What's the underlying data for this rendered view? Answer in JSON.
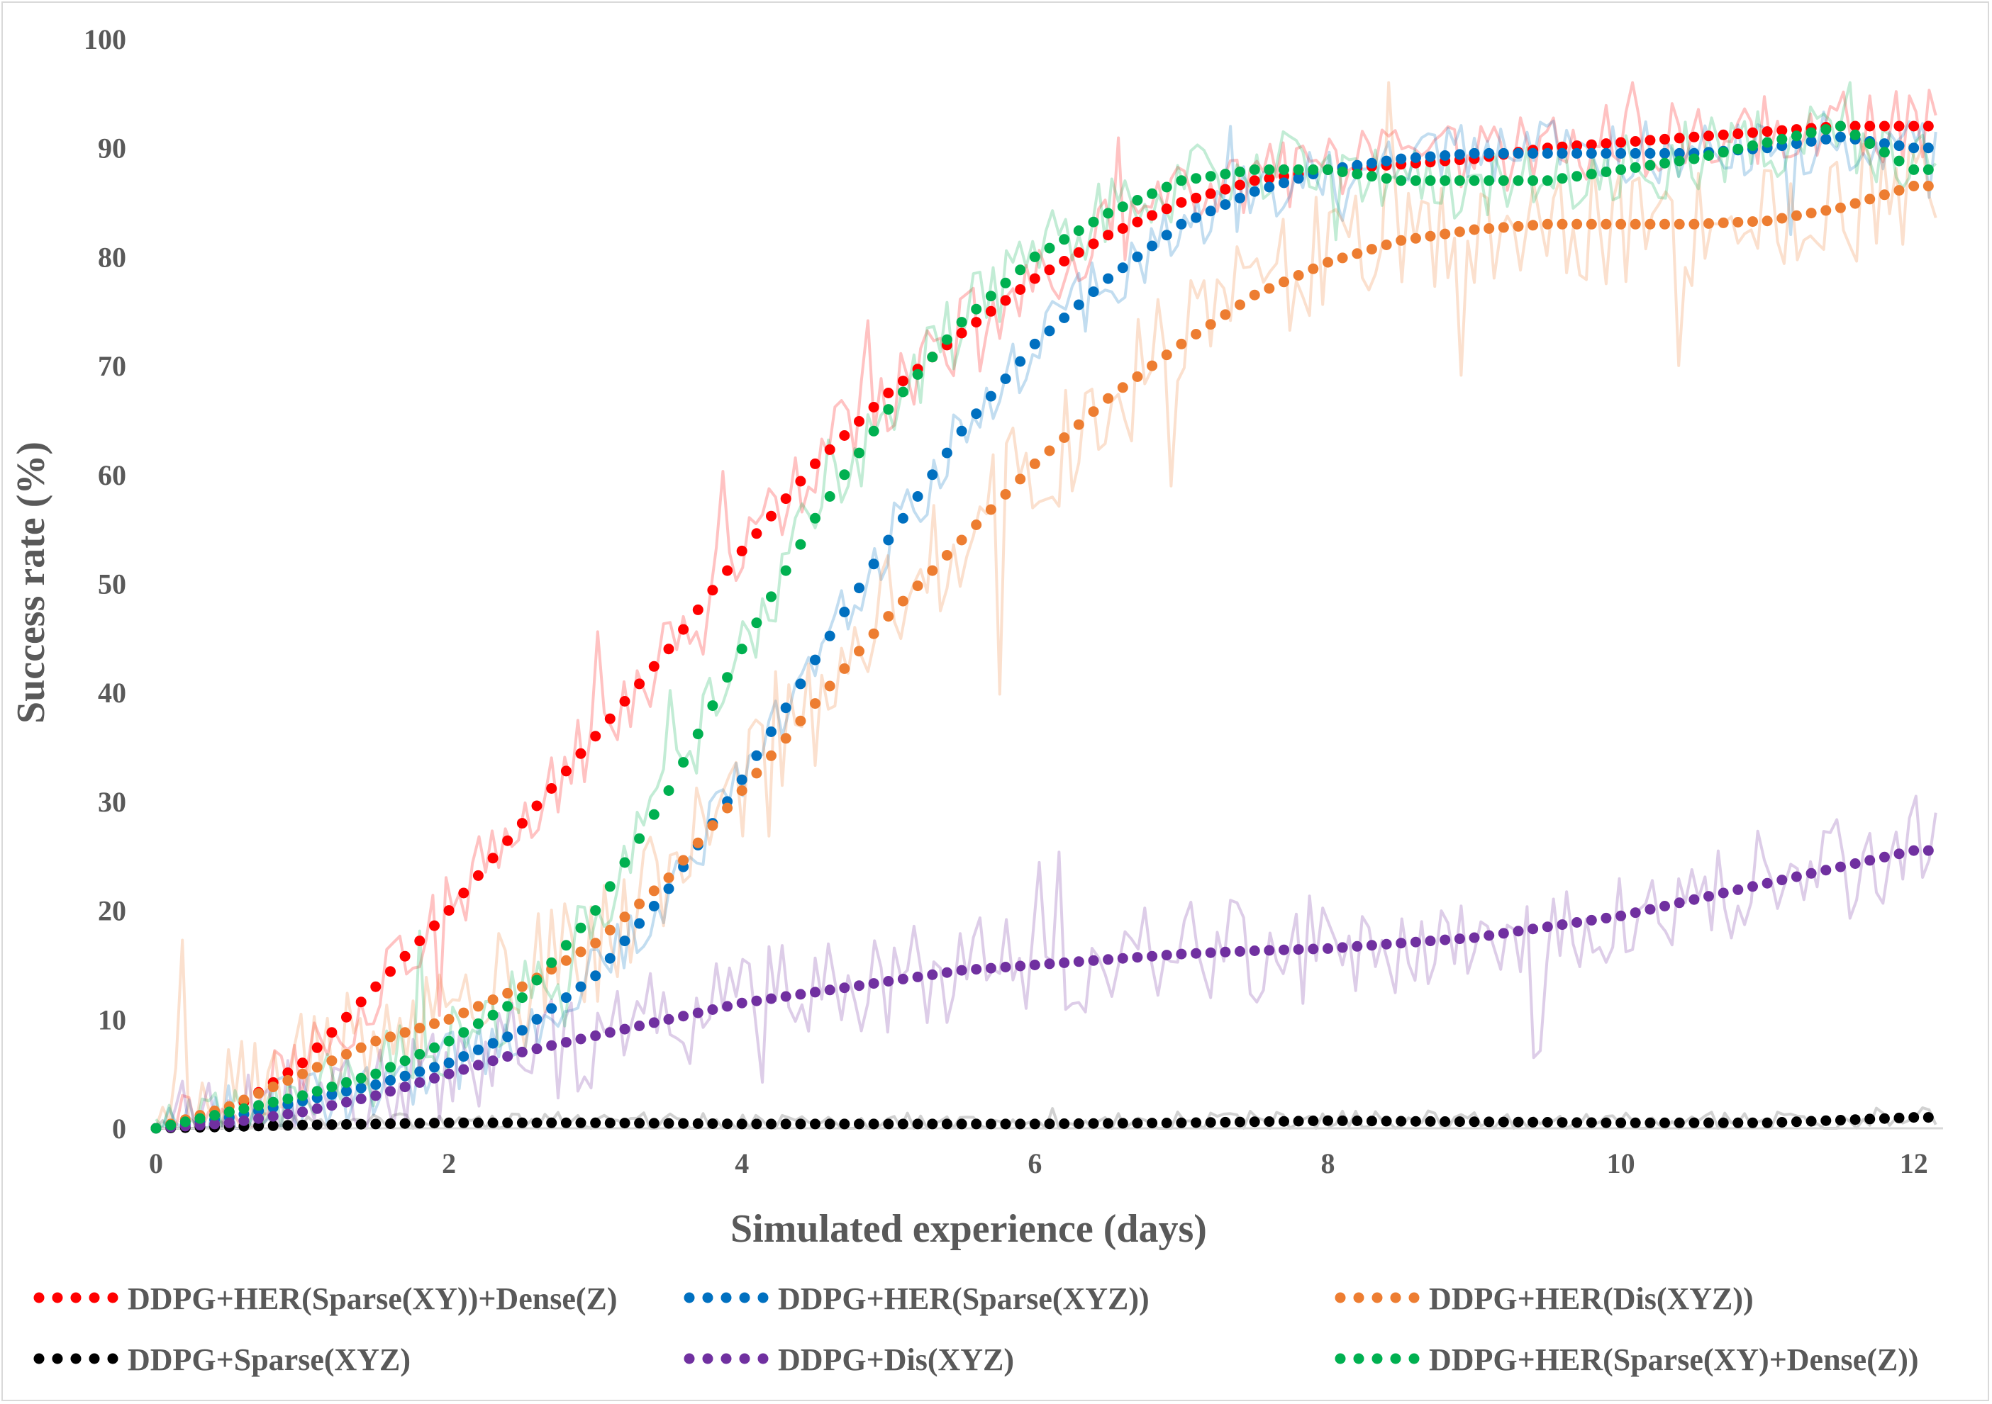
{
  "chart_data": {
    "type": "line",
    "title": "",
    "xlabel": "Simulated experience (days)",
    "ylabel": "Success rate (%)",
    "xlim": [
      0,
      12.2
    ],
    "ylim": [
      0,
      100
    ],
    "xticks": [
      0,
      2,
      4,
      6,
      8,
      10,
      12
    ],
    "yticks": [
      0,
      10,
      20,
      30,
      40,
      50,
      60,
      70,
      80,
      90,
      100
    ],
    "grid": false,
    "legend_position": "bottom",
    "series": [
      {
        "name": "DDPG+HER(Sparse(XY))+Dense(Z)",
        "color": "#ff0000",
        "trend": {
          "x": [
            0,
            0.5,
            1,
            1.5,
            2,
            2.5,
            3,
            3.5,
            4,
            4.5,
            5,
            5.5,
            6,
            6.5,
            7,
            7.5,
            8,
            8.5,
            9,
            9.5,
            10,
            10.5,
            11,
            11.5,
            12
          ],
          "y": [
            0,
            1.5,
            6,
            13,
            20,
            28,
            36,
            44,
            53,
            61,
            67.5,
            73,
            78,
            82,
            85,
            87,
            88,
            88.5,
            89,
            90,
            90.5,
            91,
            91.5,
            92,
            92
          ]
        },
        "noise": 3.5
      },
      {
        "name": "DDPG+HER(Sparse(XYZ))",
        "color": "#0070c0",
        "trend": {
          "x": [
            0,
            0.5,
            1,
            1.5,
            2,
            2.5,
            3,
            3.5,
            4,
            4.5,
            5,
            5.5,
            6,
            6.5,
            7,
            7.5,
            8,
            8.5,
            9,
            9.5,
            10,
            10.5,
            11,
            11.5,
            12
          ],
          "y": [
            0,
            1,
            2.5,
            4,
            6,
            9,
            14,
            22,
            32,
            43,
            54,
            64,
            72,
            78,
            83,
            86,
            88,
            89,
            89.5,
            89.5,
            89.5,
            89.5,
            90,
            91,
            90
          ]
        },
        "noise": 3
      },
      {
        "name": "DDPG+HER(Dis(XYZ))",
        "color": "#ed7d31",
        "trend": {
          "x": [
            0,
            0.5,
            1,
            1.5,
            2,
            2.5,
            3,
            3.5,
            4,
            4.5,
            5,
            5.5,
            6,
            6.5,
            7,
            7.5,
            8,
            8.5,
            9,
            9.5,
            10,
            10.5,
            11,
            11.5,
            12
          ],
          "y": [
            0,
            2,
            5,
            8,
            10,
            13,
            17,
            23,
            31,
            39,
            47,
            54,
            61,
            67,
            72,
            76.5,
            79.5,
            81.5,
            82.5,
            83,
            83,
            83,
            83.3,
            84.5,
            86.5
          ]
        },
        "noise": 6
      },
      {
        "name": "DDPG+Sparse(XYZ)",
        "color": "#000000",
        "trend": {
          "x": [
            0,
            1,
            2,
            3,
            4,
            5,
            6,
            7,
            8,
            9,
            10,
            11,
            12
          ],
          "y": [
            0,
            0.3,
            0.5,
            0.5,
            0.4,
            0.4,
            0.4,
            0.5,
            0.7,
            0.6,
            0.5,
            0.5,
            1
          ]
        },
        "noise": 1
      },
      {
        "name": "DDPG+Dis(XYZ)",
        "color": "#7030a0",
        "trend": {
          "x": [
            0,
            0.5,
            1,
            1.5,
            2,
            2.5,
            3,
            3.5,
            4,
            4.5,
            5,
            5.5,
            6,
            6.5,
            7,
            7.5,
            8,
            8.5,
            9,
            9.5,
            10,
            10.5,
            11,
            11.5,
            12
          ],
          "y": [
            0,
            0.5,
            1.5,
            3,
            5,
            7,
            8.5,
            10,
            11.5,
            12.5,
            13.5,
            14.5,
            15,
            15.5,
            16,
            16.3,
            16.5,
            17,
            17.5,
            18.5,
            19.5,
            21,
            22.5,
            24,
            25.5
          ]
        },
        "noise": 5
      },
      {
        "name": "DDPG+HER(Sparse(XY)+Dense(Z))",
        "color": "#00b050",
        "trend": {
          "x": [
            0,
            0.5,
            1,
            1.5,
            2,
            2.5,
            3,
            3.5,
            4,
            4.5,
            5,
            5.5,
            6,
            6.5,
            7,
            7.5,
            8,
            8.5,
            9,
            9.5,
            10,
            10.5,
            11,
            11.5,
            12
          ],
          "y": [
            0,
            1.5,
            3,
            5,
            8,
            12,
            20,
            31,
            44,
            56,
            66,
            74,
            80,
            84,
            87,
            88,
            88,
            87,
            87,
            87,
            88,
            89,
            90.5,
            92,
            88
          ]
        },
        "noise": 3.5
      }
    ],
    "legend": [
      {
        "label": "DDPG+HER(Sparse(XY))+Dense(Z)",
        "color": "#ff0000"
      },
      {
        "label": "DDPG+HER(Sparse(XYZ))",
        "color": "#0070c0"
      },
      {
        "label": "DDPG+HER(Dis(XYZ))",
        "color": "#ed7d31"
      },
      {
        "label": "DDPG+Sparse(XYZ)",
        "color": "#000000"
      },
      {
        "label": "DDPG+Dis(XYZ)",
        "color": "#7030a0"
      },
      {
        "label": "DDPG+HER(Sparse(XY)+Dense(Z))",
        "color": "#00b050"
      }
    ]
  }
}
